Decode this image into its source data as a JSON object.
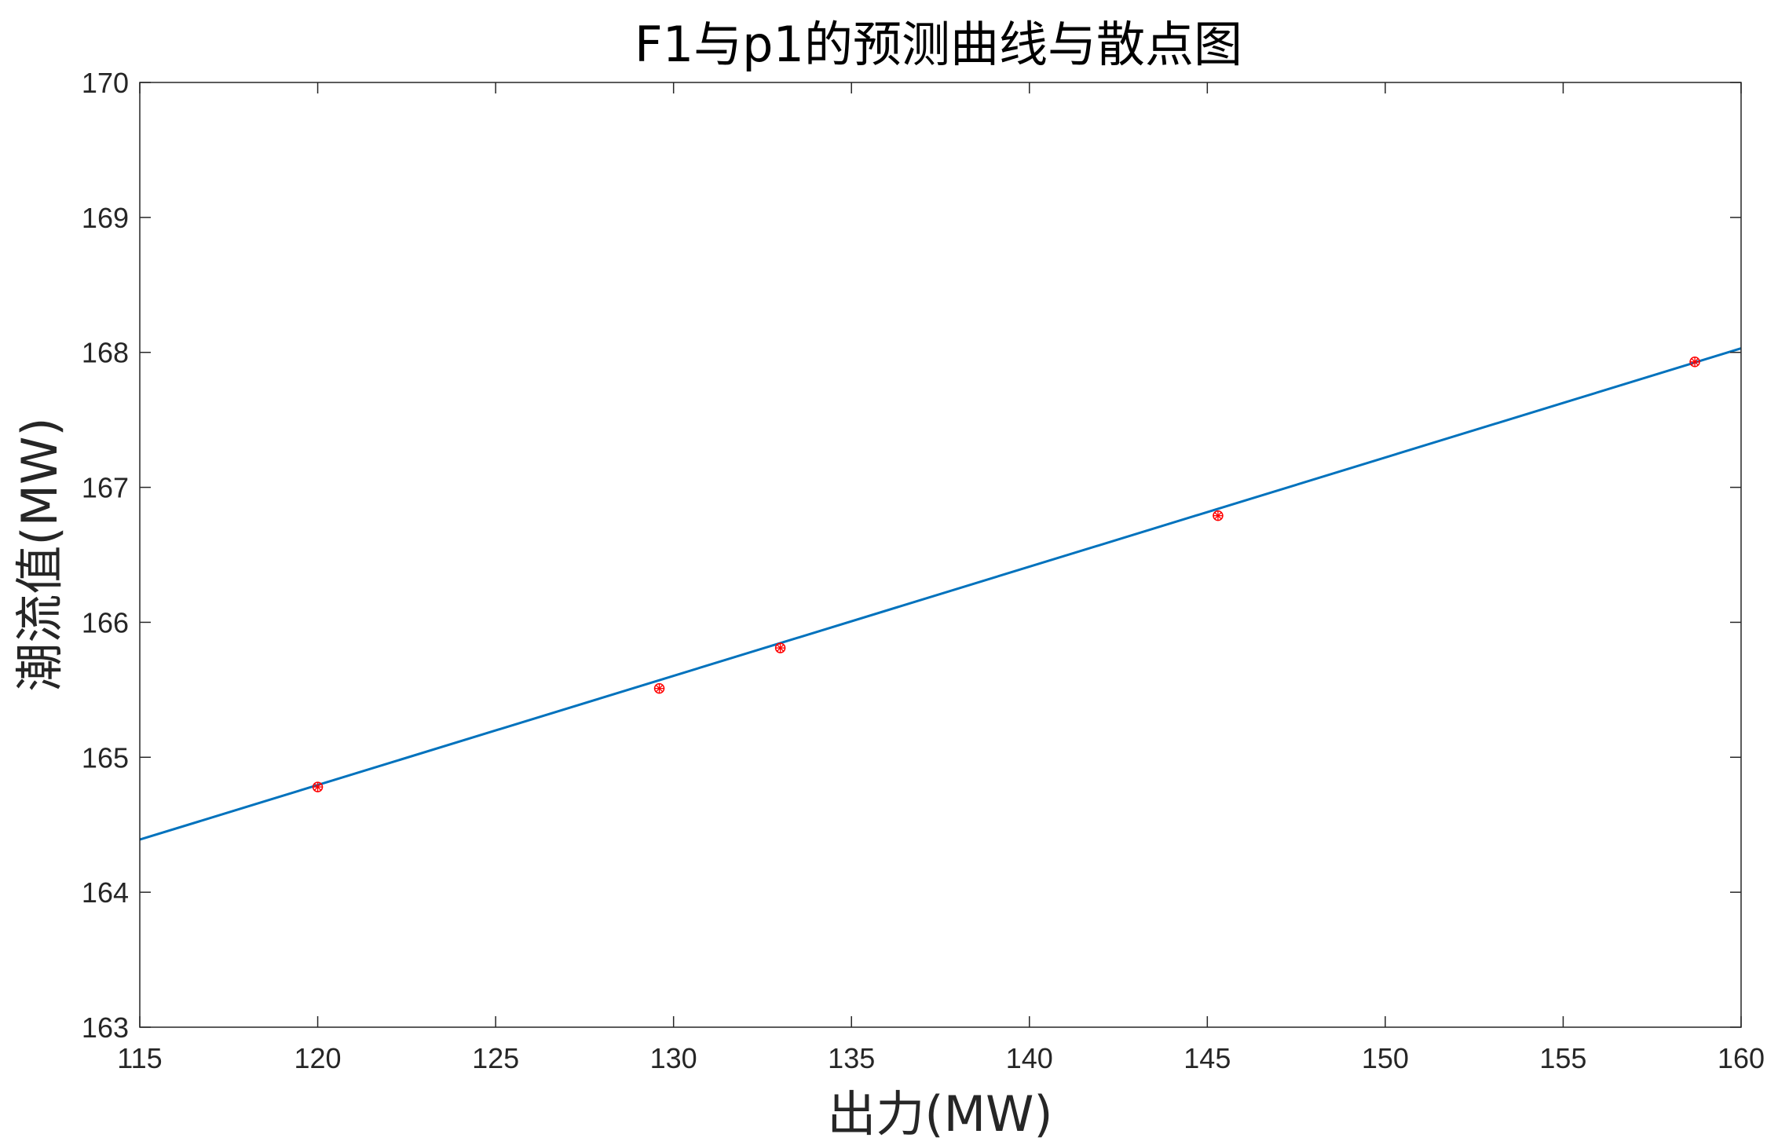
{
  "chart_data": {
    "type": "scatter",
    "title": "F1与p1的预测曲线与散点图",
    "xlabel": "出力(MW)",
    "ylabel": "潮流值(MW)",
    "xlim": [
      115,
      160
    ],
    "ylim": [
      163,
      170
    ],
    "xticks": [
      115,
      120,
      125,
      130,
      135,
      140,
      145,
      150,
      155,
      160
    ],
    "yticks": [
      163,
      164,
      165,
      166,
      167,
      168,
      169,
      170
    ],
    "grid": false,
    "legend": "none",
    "series": [
      {
        "type": "scatter",
        "marker": "asterisk-circle",
        "color": "#ff0000",
        "x": [
          120.0,
          129.6,
          133.0,
          145.3,
          158.7
        ],
        "y": [
          164.78,
          165.51,
          165.81,
          166.79,
          167.93
        ]
      },
      {
        "type": "line",
        "color": "#0072bd",
        "x": [
          115,
          160
        ],
        "y": [
          164.39,
          168.03
        ]
      }
    ]
  }
}
